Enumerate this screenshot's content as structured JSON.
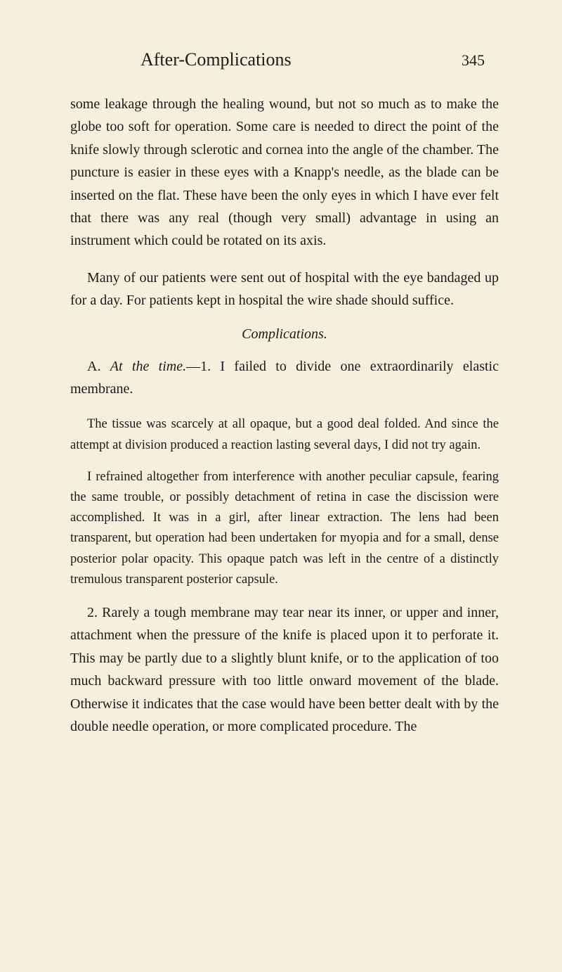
{
  "header": {
    "title": "After-Complications",
    "pageNumber": "345"
  },
  "paragraphs": {
    "p1": "some leakage through the healing wound, but not so much as to make the globe too soft for operation. Some care is needed to direct the point of the knife slowly through sclerotic and cornea into the angle of the chamber. The puncture is easier in these eyes with a Knapp's needle, as the blade can be inserted on the flat. These have been the only eyes in which I have ever felt that there was any real (though very small) advantage in using an instrument which could be rotated on its axis.",
    "p2": "Many of our patients were sent out of hospital with the eye bandaged up for a day. For patients kept in hospital the wire shade should suffice.",
    "sectionHeading": "Complications.",
    "p3_prefix": "A. ",
    "p3_italic": "At the time.",
    "p3_suffix": "—1. I failed to divide one extraordinarily elastic membrane.",
    "p4": "The tissue was scarcely at all opaque, but a good deal folded. And since the attempt at division produced a reaction lasting several days, I did not try again.",
    "p5": "I refrained altogether from interference with another peculiar capsule, fearing the same trouble, or possibly detachment of retina in case the discission were accomplished. It was in a girl, after linear extraction. The lens had been transparent, but operation had been undertaken for myopia and for a small, dense posterior polar opacity. This opaque patch was left in the centre of a distinctly tremulous transparent posterior capsule.",
    "p6": "2. Rarely a tough membrane may tear near its inner, or upper and inner, attachment when the pressure of the knife is placed upon it to perforate it. This may be partly due to a slightly blunt knife, or to the application of too much backward pressure with too little onward movement of the blade. Otherwise it indicates that the case would have been better dealt with by the double needle operation, or more complicated procedure. The"
  },
  "styling": {
    "backgroundColor": "#f5f0de",
    "textColor": "#1a1a1a",
    "bodyFontSize": 20,
    "smallFontSize": 18.5,
    "titleFontSize": 26,
    "pageNumFontSize": 22,
    "lineHeight": 1.62,
    "fontFamily": "Georgia, Times New Roman, serif"
  }
}
